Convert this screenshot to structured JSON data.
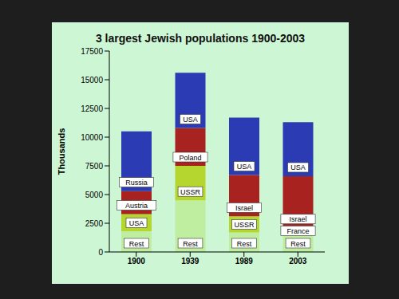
{
  "chart_data": {
    "type": "bar",
    "title": "3 largest Jewish populations 1900-2003",
    "y_label": "Thousands",
    "categories": [
      "1900",
      "1939",
      "1989",
      "2003"
    ],
    "stacked": true,
    "grid": false,
    "ylim": [
      0,
      17500
    ],
    "yticks": [
      0,
      2500,
      5000,
      7500,
      10000,
      12500,
      15000,
      17500
    ],
    "series": [
      {
        "color": "#bfeea0",
        "values": [
          1800,
          4500,
          1700,
          1600
        ],
        "labels": [
          "Rest",
          "Rest",
          "Rest",
          "Rest"
        ]
      },
      {
        "color": "#b5d62e",
        "values": [
          1500,
          3000,
          1400,
          500
        ],
        "labels": [
          "USA",
          "USSR",
          "USSR",
          "France"
        ]
      },
      {
        "color": "#a8231f",
        "values": [
          2000,
          3300,
          3600,
          4500
        ],
        "labels": [
          "Austria",
          "Poland",
          "Israel",
          "Israel"
        ]
      },
      {
        "color": "#2b3bb3",
        "values": [
          5200,
          4800,
          5000,
          4700
        ],
        "labels": [
          "Russia",
          "USA",
          "USA",
          "USA"
        ]
      }
    ]
  }
}
